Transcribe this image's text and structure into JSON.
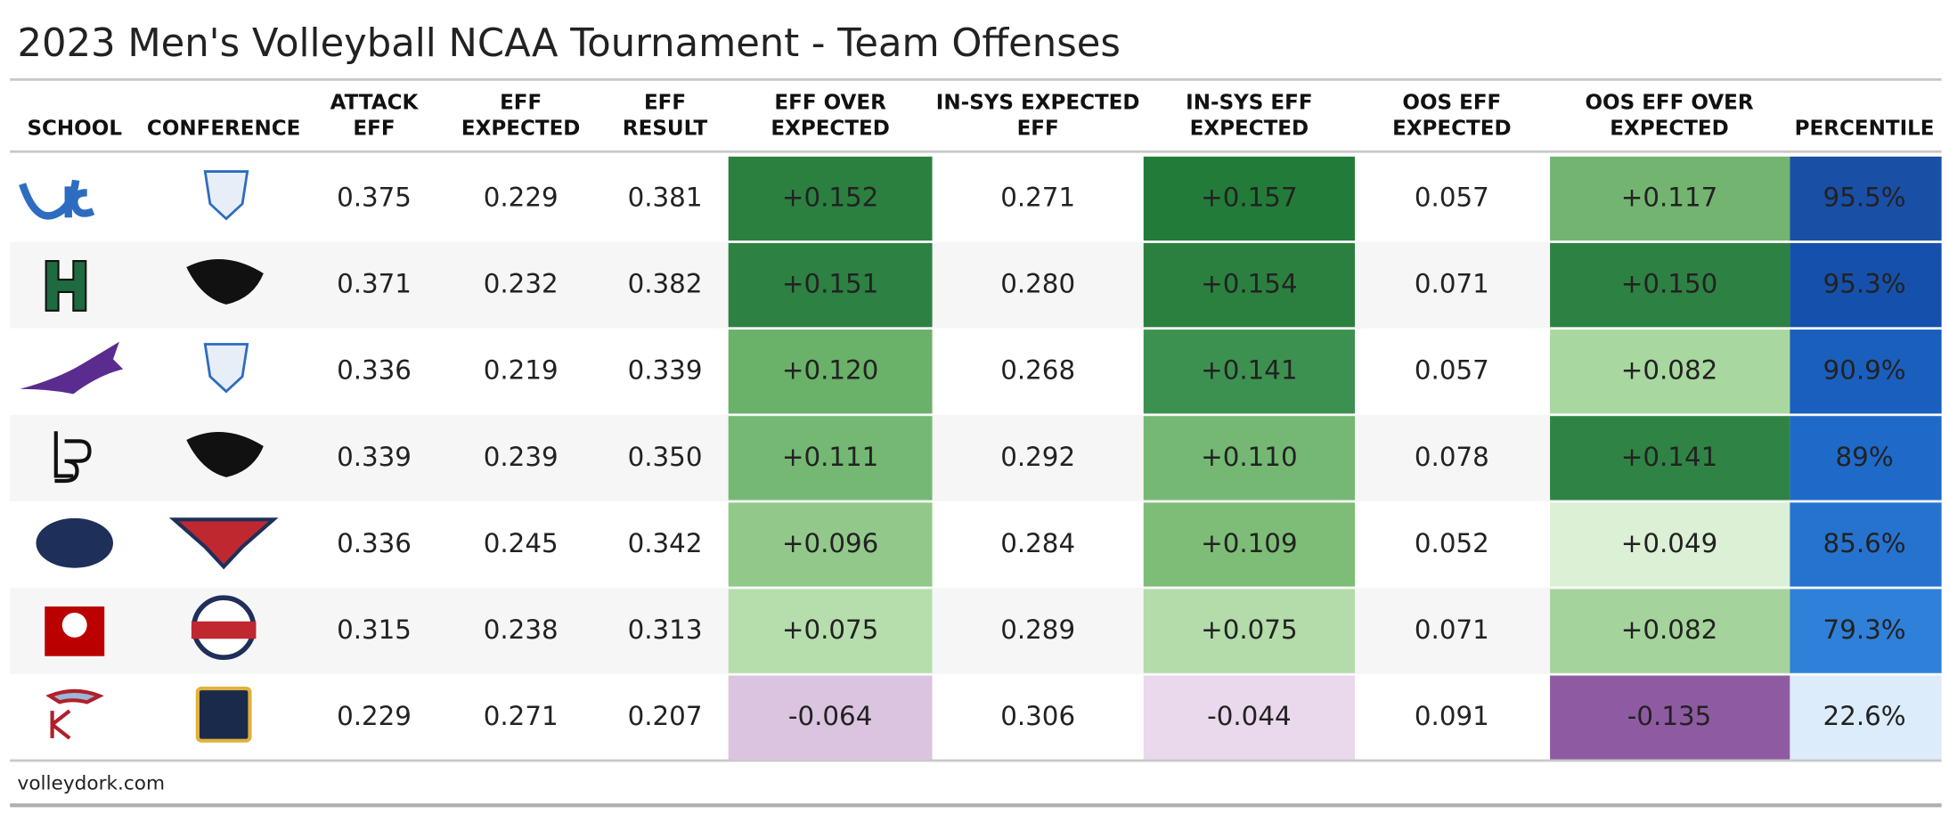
{
  "header": {
    "title": "2023 Men's Volleyball NCAA Tournament - Team Offenses"
  },
  "table": {
    "columns": [
      [
        "SCHOOL"
      ],
      [
        "CONFERENCE"
      ],
      [
        "ATTACK",
        "EFF"
      ],
      [
        "EFF",
        "EXPECTED"
      ],
      [
        "EFF",
        "RESULT"
      ],
      [
        "EFF OVER",
        "EXPECTED"
      ],
      [
        "IN-SYS EXPECTED",
        "EFF"
      ],
      [
        "IN-SYS EFF",
        "EXPECTED"
      ],
      [
        "OOS EFF",
        "EXPECTED"
      ],
      [
        "OOS EFF OVER",
        "EXPECTED"
      ],
      [
        "PERCENTILE"
      ]
    ],
    "shaded_columns": [
      5,
      7,
      9,
      10
    ],
    "rows": [
      {
        "cells": [
          "0.375",
          "0.229",
          "0.381",
          "+0.152",
          "0.271",
          "+0.157",
          "0.057",
          "+0.117",
          "95.5%"
        ],
        "fills": [
          "#2b8040",
          "#237b3a",
          "#74b471",
          "#1a4fa6"
        ],
        "text_colors": [
          "#ffffff",
          "#ffffff",
          "#ffffff",
          "#ffffff"
        ]
      },
      {
        "cells": [
          "0.371",
          "0.232",
          "0.382",
          "+0.151",
          "0.280",
          "+0.154",
          "0.071",
          "+0.150",
          "95.3%"
        ],
        "fills": [
          "#2d8142",
          "#2b8040",
          "#2d8142",
          "#1551ac"
        ],
        "text_colors": [
          "#ffffff",
          "#ffffff",
          "#ffffff",
          "#ffffff"
        ]
      },
      {
        "cells": [
          "0.336",
          "0.219",
          "0.339",
          "+0.120",
          "0.268",
          "+0.141",
          "0.057",
          "+0.082",
          "90.9%"
        ],
        "fills": [
          "#6ab16a",
          "#3d9150",
          "#a8d89f",
          "#1a5fbd"
        ],
        "text_colors": [
          "#ffffff",
          "#ffffff",
          "#111111",
          "#ffffff"
        ]
      },
      {
        "cells": [
          "0.339",
          "0.239",
          "0.350",
          "+0.111",
          "0.292",
          "+0.110",
          "0.078",
          "+0.141",
          "89%"
        ],
        "fills": [
          "#74b873",
          "#74b873",
          "#2f8445",
          "#1f6ac8"
        ],
        "text_colors": [
          "#111111",
          "#111111",
          "#ffffff",
          "#ffffff"
        ]
      },
      {
        "cells": [
          "0.336",
          "0.245",
          "0.342",
          "+0.096",
          "0.284",
          "+0.109",
          "0.052",
          "+0.049",
          "85.6%"
        ],
        "fills": [
          "#92c98a",
          "#7ebd78",
          "#dbf0d5",
          "#2673cf"
        ],
        "text_colors": [
          "#111111",
          "#111111",
          "#111111",
          "#ffffff"
        ]
      },
      {
        "cells": [
          "0.315",
          "0.238",
          "0.313",
          "+0.075",
          "0.289",
          "+0.075",
          "0.071",
          "+0.082",
          "79.3%"
        ],
        "fills": [
          "#b6dead",
          "#b3dcaa",
          "#a4d49b",
          "#2f80d8"
        ],
        "text_colors": [
          "#111111",
          "#111111",
          "#111111",
          "#ffffff"
        ]
      },
      {
        "cells": [
          "0.229",
          "0.271",
          "0.207",
          "-0.064",
          "0.306",
          "-0.044",
          "0.091",
          "-0.135",
          "22.6%"
        ],
        "fills": [
          "#dbc4e0",
          "#ead8ec",
          "#8e5ba3",
          "#dcecfa"
        ],
        "text_colors": [
          "#111111",
          "#111111",
          "#ffffff",
          "#111111"
        ]
      }
    ]
  },
  "footer": {
    "source": "volleydork.com"
  }
}
